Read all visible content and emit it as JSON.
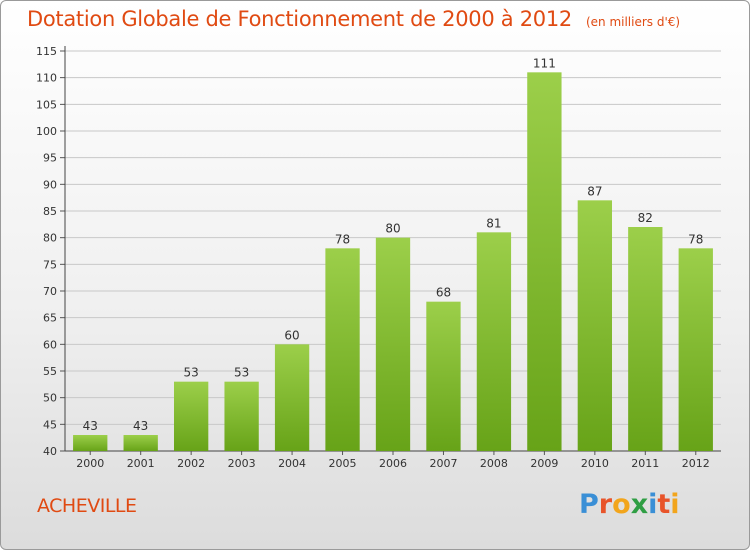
{
  "title": "Dotation Globale de Fonctionnement de 2000 à 2012",
  "subtitle": "(en milliers d'€)",
  "commune": "ACHEVILLE",
  "logo": {
    "text": "Proxiti",
    "letter_colors": [
      "#3a8fd6",
      "#e8542a",
      "#f2a51c",
      "#2f9e44",
      "#3a8fd6",
      "#e8542a",
      "#f2a51c"
    ]
  },
  "colors": {
    "title": "#e04a12",
    "bar_light": "#9ccf4a",
    "bar_dark": "#67a318",
    "grid": "#c8c8c8"
  },
  "chart_data": {
    "type": "bar",
    "title": "Dotation Globale de Fonctionnement de 2000 à 2012",
    "subtitle": "(en milliers d'€)",
    "categories": [
      "2000",
      "2001",
      "2002",
      "2003",
      "2004",
      "2005",
      "2006",
      "2007",
      "2008",
      "2009",
      "2010",
      "2011",
      "2012"
    ],
    "values": [
      43,
      43,
      53,
      53,
      60,
      78,
      80,
      68,
      81,
      111,
      87,
      82,
      78
    ],
    "ylim": [
      40,
      115
    ],
    "yticks": [
      40,
      45,
      50,
      55,
      60,
      65,
      70,
      75,
      80,
      85,
      90,
      95,
      100,
      105,
      110,
      115
    ],
    "grid": true,
    "data_labels": true
  }
}
